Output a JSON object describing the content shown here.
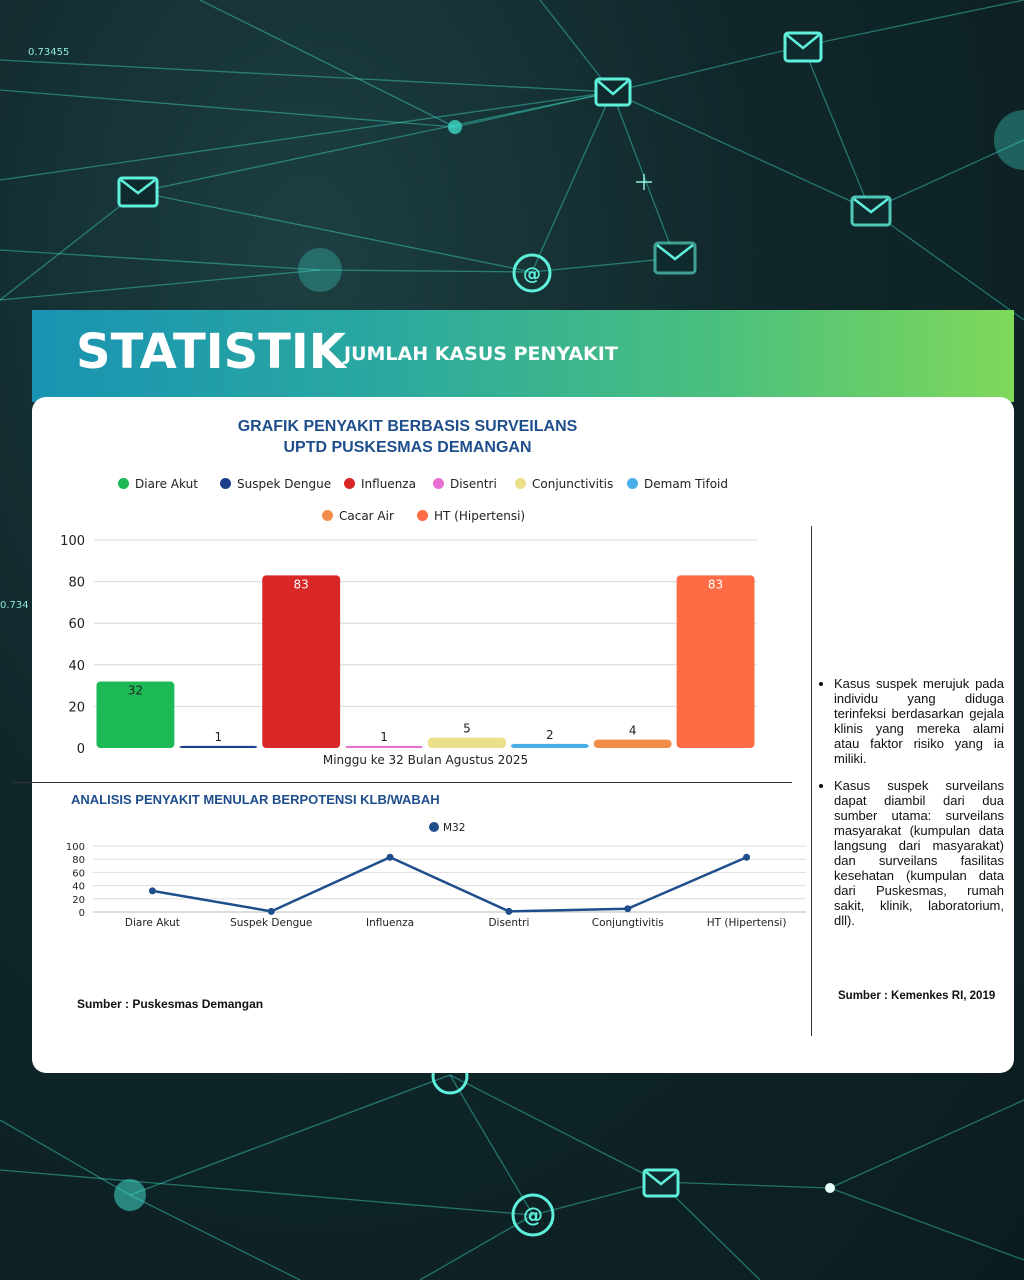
{
  "banner": {
    "title": "STATISTIK",
    "subtitle": "JUMLAH KASUS PENYAKIT"
  },
  "bar_chart": {
    "title_line1": "GRAFIK PENYAKIT BERBASIS SURVEILANS",
    "title_line2": "UPTD PUSKESMAS DEMANGAN"
  },
  "line_chart": {
    "title": "ANALISIS  PENYAKIT MENULAR  BERPOTENSI KLB/WABAH"
  },
  "source_left": "Sumber : Puskesmas Demangan",
  "notes": {
    "items": [
      "Kasus suspek merujuk pada individu yang diduga terinfeksi berdasarkan gejala klinis yang mereka alami atau faktor risiko yang ia miliki.",
      "Kasus suspek surveilans dapat diambil dari dua sumber utama: surveilans masyarakat (kumpulan data langsung dari masyarakat) dan surveilans fasilitas kesehatan (kumpulan data dari Puskesmas, rumah sakit, klinik, laboratorium, dll)."
    ],
    "source": "Sumber : Kemenkes RI, 2019"
  },
  "background": {
    "decor_number": "0.73455",
    "decor_number_2": "0.734"
  },
  "chart_data": [
    {
      "type": "bar",
      "title": "GRAFIK PENYAKIT BERBASIS SURVEILANS UPTD PUSKESMAS DEMANGAN",
      "xlabel": "Minggu ke 32 Bulan Agustus 2025",
      "ylabel": "",
      "ylim": [
        0,
        100
      ],
      "yticks": [
        0,
        20,
        40,
        60,
        80,
        100
      ],
      "grid": true,
      "legend_position": "top",
      "series": [
        {
          "name": "Diare Akut",
          "value": 32,
          "color": "#1db954"
        },
        {
          "name": "Suspek Dengue",
          "value": 1,
          "color": "#1c3f8a"
        },
        {
          "name": "Influenza",
          "value": 83,
          "color": "#d92626"
        },
        {
          "name": "Disentri",
          "value": 1,
          "color": "#e86fd2"
        },
        {
          "name": "Conjunctivitis",
          "value": 5,
          "color": "#ece08a"
        },
        {
          "name": "Demam Tifoid",
          "value": 2,
          "color": "#48aee8"
        },
        {
          "name": "Cacar Air",
          "value": 4,
          "color": "#f28c4a"
        },
        {
          "name": "HT (Hipertensi)",
          "value": 83,
          "color": "#ff6b45"
        }
      ]
    },
    {
      "type": "line",
      "title": "ANALISIS  PENYAKIT MENULAR  BERPOTENSI KLB/WABAH",
      "categories": [
        "Diare Akut",
        "Suspek Dengue",
        "Influenza",
        "Disentri",
        "Conjungtivitis",
        "HT (Hipertensi)"
      ],
      "ylim": [
        0,
        100
      ],
      "yticks": [
        0,
        20,
        40,
        60,
        80,
        100
      ],
      "grid": true,
      "legend_position": "top",
      "series": [
        {
          "name": "M32",
          "values": [
            32,
            1,
            83,
            1,
            5,
            83
          ],
          "color": "#1f4e8c"
        }
      ]
    }
  ]
}
